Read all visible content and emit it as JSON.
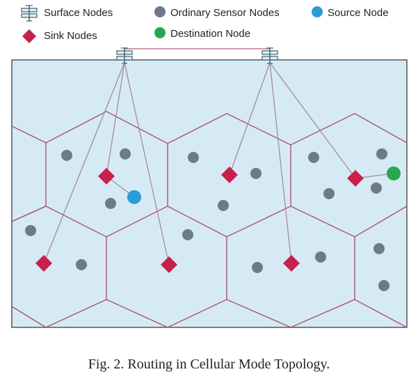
{
  "legend": {
    "surface_nodes": "Surface Nodes",
    "ordinary_sensor_nodes": "Ordinary Sensor Nodes",
    "source_node": "Source Node",
    "sink_nodes": "Sink Nodes",
    "destination_node": "Destination Node"
  },
  "caption": "Fig. 2.  Routing in Cellular Mode Topology.",
  "colors": {
    "water": "#d6eaf5",
    "border": "#555555",
    "cell_edge": "#a8546f",
    "link": "#a48a9a",
    "surface_link": "#c07a92",
    "sensor": "#6e7a87",
    "sink": "#c8204c",
    "source": "#2d9bd6",
    "destination": "#28a84c",
    "buoy": "#4a6a78"
  },
  "icons": {
    "surface_node": "buoy-icon",
    "sensor_node": "circle-icon",
    "sink_node": "diamond-icon",
    "source_node": "circle-icon",
    "destination_node": "circle-icon"
  }
}
